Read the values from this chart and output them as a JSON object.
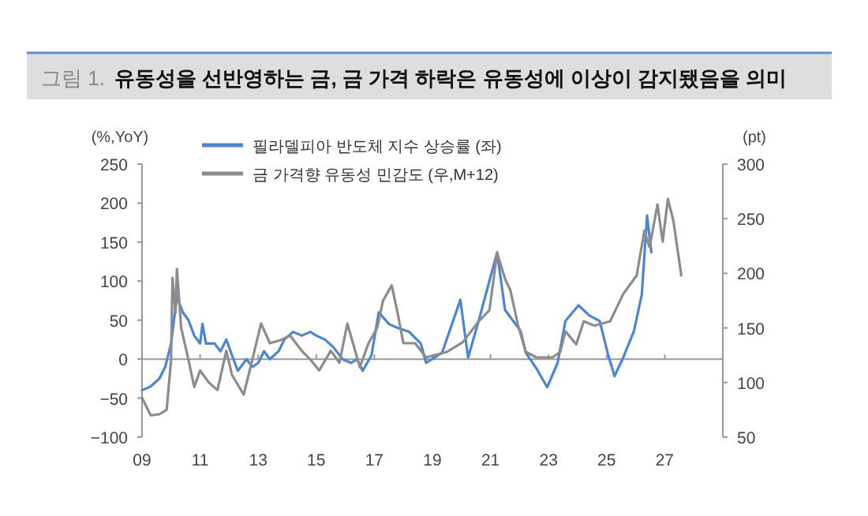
{
  "chart_data": {
    "type": "line",
    "title": "그림 1.  유동성을 선반영하는 금, 금 가격 하락은 유동성에 이상이 감지됐음을 의미",
    "ylabel": "(%,YoY)",
    "y2label": "(pt)",
    "legend": "top",
    "xlim": [
      2009,
      2029
    ],
    "ylim": [
      -100,
      250
    ],
    "y2lim": [
      50,
      300
    ],
    "xticks": [
      {
        "value": 2009,
        "label": "09"
      },
      {
        "value": 2011,
        "label": "11"
      },
      {
        "value": 2013,
        "label": "13"
      },
      {
        "value": 2015,
        "label": "15"
      },
      {
        "value": 2017,
        "label": "17"
      },
      {
        "value": 2019,
        "label": "19"
      },
      {
        "value": 2021,
        "label": "21"
      },
      {
        "value": 2023,
        "label": "23"
      },
      {
        "value": 2025,
        "label": "25"
      },
      {
        "value": 2027,
        "label": "27"
      }
    ],
    "yticks": [
      {
        "value": -100,
        "label": "−100"
      },
      {
        "value": -50,
        "label": "−50"
      },
      0,
      50,
      100,
      150,
      200,
      250
    ],
    "y2ticks": [
      50,
      100,
      150,
      200,
      250,
      300
    ],
    "series": [
      {
        "name": "필라델피아 반도체 지수 상승률 (좌)",
        "color": "#4a86d8",
        "x": [
          2009.0,
          2009.3,
          2009.6,
          2009.8,
          2010.0,
          2010.2,
          2010.4,
          2010.6,
          2010.8,
          2011.0,
          2011.08,
          2011.2,
          2011.5,
          2011.7,
          2011.9,
          2012.1,
          2012.3,
          2012.6,
          2012.8,
          2013.0,
          2013.2,
          2013.4,
          2013.7,
          2013.9,
          2014.2,
          2014.5,
          2014.8,
          2015.0,
          2015.3,
          2015.6,
          2015.9,
          2016.2,
          2016.4,
          2016.6,
          2016.9,
          2017.15,
          2017.5,
          2017.8,
          2018.2,
          2018.6,
          2018.78,
          2019.33,
          2019.96,
          2020.23,
          2020.59,
          2021.23,
          2021.5,
          2022.04,
          2022.22,
          2022.58,
          2022.95,
          2023.31,
          2023.58,
          2024.03,
          2024.4,
          2024.76,
          2025.03,
          2025.27,
          2025.57,
          2025.94,
          2026.21,
          2026.39,
          2026.54
        ],
        "values": [
          -40,
          -35,
          -25,
          -10,
          20,
          80,
          60,
          50,
          30,
          20,
          45,
          20,
          20,
          10,
          25,
          5,
          -15,
          0,
          -10,
          -5,
          10,
          0,
          10,
          25,
          35,
          30,
          35,
          30,
          25,
          15,
          0,
          -5,
          0,
          -15,
          5,
          60,
          45,
          40,
          35,
          20,
          -5,
          8,
          76,
          2,
          49,
          137,
          63,
          36,
          8,
          -12,
          -36,
          -5,
          49,
          69,
          56,
          49,
          8,
          -22,
          2,
          36,
          83,
          184,
          137
        ]
      },
      {
        "name": "금 가격향 유동성 민감도 (우,M+12)",
        "color": "#8c8c8c",
        "axis": "y2",
        "x": [
          2009.0,
          2009.3,
          2009.6,
          2009.85,
          2010.0,
          2010.05,
          2010.15,
          2010.2,
          2010.35,
          2010.6,
          2010.8,
          2011.0,
          2011.3,
          2011.6,
          2011.9,
          2012.1,
          2012.5,
          2012.8,
          2013.1,
          2013.4,
          2013.8,
          2014.1,
          2014.5,
          2014.8,
          2015.1,
          2015.5,
          2015.8,
          2016.07,
          2016.5,
          2016.8,
          2017.1,
          2017.3,
          2017.6,
          2017.8,
          2018.0,
          2018.4,
          2018.78,
          2019.5,
          2020.05,
          2020.59,
          2020.96,
          2021.23,
          2021.5,
          2021.68,
          2021.95,
          2022.22,
          2022.58,
          2023.13,
          2023.4,
          2023.58,
          2023.95,
          2024.21,
          2024.58,
          2025.12,
          2025.57,
          2026.03,
          2026.3,
          2026.48,
          2026.75,
          2026.93,
          2027.11,
          2027.3,
          2027.57
        ],
        "values": [
          86,
          70,
          71,
          75,
          121,
          196,
          164,
          204,
          150,
          121,
          96,
          111,
          100,
          93,
          129,
          107,
          89,
          121,
          154,
          136,
          139,
          143,
          129,
          121,
          111,
          129,
          118,
          154,
          114,
          136,
          150,
          175,
          189,
          164,
          136,
          136,
          123,
          128,
          137,
          156,
          166,
          219,
          195,
          185,
          152,
          128,
          123,
          123,
          128,
          147,
          135,
          156,
          152,
          156,
          181,
          198,
          239,
          224,
          263,
          229,
          268,
          248,
          198
        ]
      }
    ]
  }
}
